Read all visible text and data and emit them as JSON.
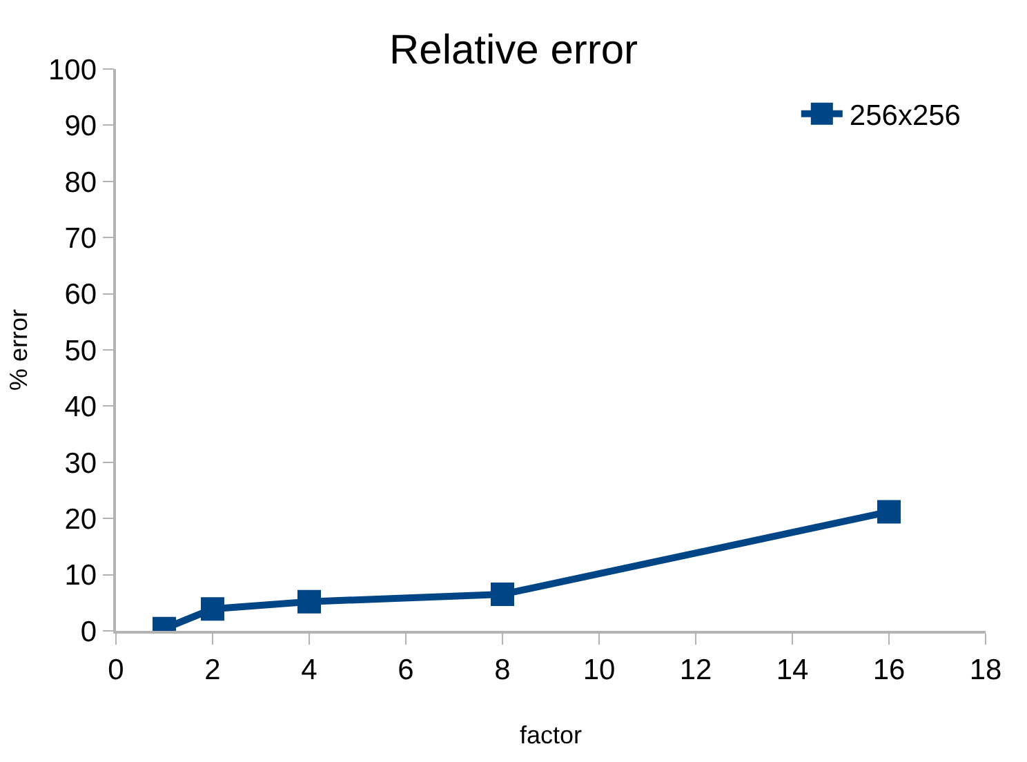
{
  "chart_data": {
    "type": "line",
    "title": "Relative error",
    "xlabel": "factor",
    "ylabel": "% error",
    "x": [
      1,
      2,
      4,
      8,
      16
    ],
    "series": [
      {
        "name": "256x256",
        "color": "#004586",
        "values": [
          0.4,
          3.9,
          5.2,
          6.5,
          21.2
        ]
      }
    ],
    "xlim": [
      0,
      18
    ],
    "xticks": [
      0,
      2,
      4,
      6,
      8,
      10,
      12,
      14,
      16,
      18
    ],
    "ylim": [
      0,
      100
    ],
    "yticks": [
      0,
      10,
      20,
      30,
      40,
      50,
      60,
      70,
      80,
      90,
      100
    ],
    "legend": "top right",
    "marker": "square",
    "line_style": "solid"
  }
}
